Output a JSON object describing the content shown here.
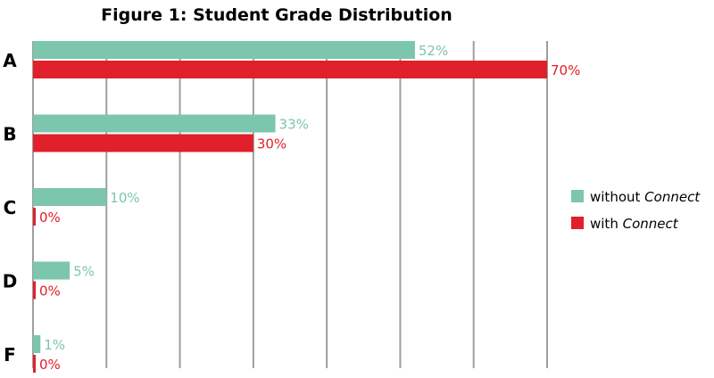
{
  "chart_data": {
    "type": "bar",
    "orientation": "horizontal",
    "title": "Figure 1: Student Grade Distribution",
    "categories": [
      "A",
      "B",
      "C",
      "D",
      "F"
    ],
    "series": [
      {
        "name": "without",
        "name_em": "Connect",
        "color": "#7cc6ad",
        "values": [
          52,
          33,
          10,
          5,
          1
        ]
      },
      {
        "name": "with",
        "name_em": "Connect",
        "color": "#e0202a",
        "values": [
          70,
          30,
          0,
          0,
          0
        ]
      }
    ],
    "value_suffix": "%",
    "xlim": [
      0,
      70
    ],
    "grid": true,
    "legend": "right"
  }
}
